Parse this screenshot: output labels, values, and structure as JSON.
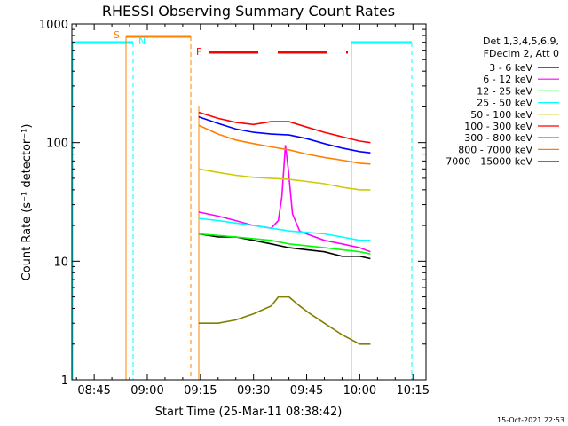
{
  "chart_data": {
    "type": "line",
    "title": "RHESSI Observing Summary Count Rates",
    "xlabel": "Start Time (25-Mar-11 08:38:42)",
    "ylabel": "Count Rate (s⁻¹ detector⁻¹)",
    "yscale": "log",
    "ylim": [
      1,
      1000
    ],
    "xlim_minutes": [
      38.7,
      138.7
    ],
    "x_ticks": [
      {
        "label": "08:45",
        "min": 45
      },
      {
        "label": "09:00",
        "min": 60
      },
      {
        "label": "09:15",
        "min": 75
      },
      {
        "label": "09:30",
        "min": 90
      },
      {
        "label": "09:45",
        "min": 105
      },
      {
        "label": "10:00",
        "min": 120
      },
      {
        "label": "10:15",
        "min": 135
      }
    ],
    "y_ticks": [
      {
        "label": "1",
        "value": 1
      },
      {
        "label": "10",
        "value": 10
      },
      {
        "label": "100",
        "value": 100
      },
      {
        "label": "1000",
        "value": 1000
      }
    ],
    "legend_header": [
      "Det 1,3,4,5,6,9,",
      "FDecim 2, Att 0"
    ],
    "series": [
      {
        "name": "3 - 6 keV",
        "color": "#000000",
        "points": [
          [
            74.5,
            17
          ],
          [
            80,
            16
          ],
          [
            85,
            16
          ],
          [
            90,
            15
          ],
          [
            95,
            14
          ],
          [
            100,
            13
          ],
          [
            105,
            12.5
          ],
          [
            110,
            12
          ],
          [
            115,
            11
          ],
          [
            120,
            11
          ],
          [
            123,
            10.5
          ]
        ]
      },
      {
        "name": "6 - 12 keV",
        "color": "#ff00ff",
        "points": [
          [
            74.5,
            26
          ],
          [
            80,
            24
          ],
          [
            85,
            22
          ],
          [
            90,
            20
          ],
          [
            95,
            19
          ],
          [
            97,
            22
          ],
          [
            98,
            35
          ],
          [
            99,
            95
          ],
          [
            99.8,
            60
          ],
          [
            101,
            25
          ],
          [
            103,
            18
          ],
          [
            105,
            17
          ],
          [
            110,
            15
          ],
          [
            115,
            14
          ],
          [
            120,
            13
          ],
          [
            123,
            12
          ]
        ]
      },
      {
        "name": "12 - 25 keV",
        "color": "#00ff00",
        "points": [
          [
            74.5,
            17
          ],
          [
            80,
            16.5
          ],
          [
            85,
            16
          ],
          [
            90,
            15.5
          ],
          [
            95,
            15
          ],
          [
            100,
            14
          ],
          [
            105,
            13.5
          ],
          [
            110,
            13
          ],
          [
            115,
            12.5
          ],
          [
            120,
            12
          ],
          [
            123,
            11.5
          ]
        ]
      },
      {
        "name": "25 - 50 keV",
        "color": "#00ffff",
        "points": [
          [
            74.5,
            23
          ],
          [
            80,
            22
          ],
          [
            85,
            21
          ],
          [
            90,
            20
          ],
          [
            95,
            19
          ],
          [
            100,
            18
          ],
          [
            105,
            17.5
          ],
          [
            110,
            17
          ],
          [
            115,
            16
          ],
          [
            120,
            15
          ],
          [
            123,
            15
          ]
        ]
      },
      {
        "name": "50 - 100 keV",
        "color": "#cccc00",
        "points": [
          [
            74.5,
            60
          ],
          [
            80,
            56
          ],
          [
            85,
            53
          ],
          [
            90,
            51
          ],
          [
            95,
            50
          ],
          [
            100,
            49
          ],
          [
            105,
            47
          ],
          [
            110,
            45
          ],
          [
            115,
            42
          ],
          [
            120,
            40
          ],
          [
            123,
            40
          ]
        ]
      },
      {
        "name": "100 - 300 keV",
        "color": "#ff0000",
        "points": [
          [
            74.5,
            180
          ],
          [
            80,
            160
          ],
          [
            85,
            148
          ],
          [
            90,
            142
          ],
          [
            95,
            150
          ],
          [
            100,
            150
          ],
          [
            105,
            135
          ],
          [
            110,
            122
          ],
          [
            115,
            112
          ],
          [
            120,
            103
          ],
          [
            123,
            100
          ]
        ]
      },
      {
        "name": "300 - 800 keV",
        "color": "#0000ff",
        "points": [
          [
            74.5,
            165
          ],
          [
            80,
            145
          ],
          [
            85,
            130
          ],
          [
            90,
            122
          ],
          [
            95,
            118
          ],
          [
            100,
            116
          ],
          [
            105,
            108
          ],
          [
            110,
            98
          ],
          [
            115,
            90
          ],
          [
            120,
            84
          ],
          [
            123,
            82
          ]
        ]
      },
      {
        "name": "800 - 7000 keV",
        "color": "#ff8000",
        "points": [
          [
            74.5,
            140
          ],
          [
            80,
            118
          ],
          [
            85,
            105
          ],
          [
            90,
            98
          ],
          [
            95,
            92
          ],
          [
            100,
            87
          ],
          [
            105,
            80
          ],
          [
            110,
            75
          ],
          [
            115,
            71
          ],
          [
            120,
            67
          ],
          [
            123,
            66
          ]
        ]
      },
      {
        "name": "7000 - 15000 keV",
        "color": "#808000",
        "points": [
          [
            74.5,
            3
          ],
          [
            80,
            3
          ],
          [
            85,
            3.2
          ],
          [
            90,
            3.6
          ],
          [
            95,
            4.2
          ],
          [
            97,
            5
          ],
          [
            100,
            5
          ],
          [
            103,
            4.2
          ],
          [
            106,
            3.6
          ],
          [
            110,
            3
          ],
          [
            115,
            2.4
          ],
          [
            120,
            2
          ],
          [
            123,
            2
          ]
        ]
      }
    ],
    "annotations": [
      {
        "label": "S",
        "color": "#ff8000"
      },
      {
        "label": "N",
        "color": "#00ffff"
      },
      {
        "label": "F",
        "color": "#ff0000"
      }
    ],
    "footer": "15-Oct-2021 22:53"
  }
}
